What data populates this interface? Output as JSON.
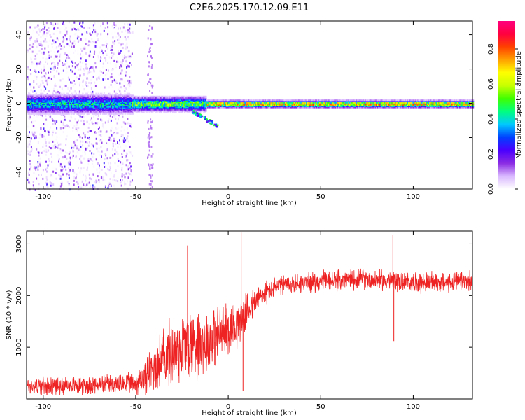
{
  "figure": {
    "title": "C2E6.2025.170.12.09.E11"
  },
  "colors": {
    "snr_line": "#ee2222",
    "axis": "#000000",
    "colormap": [
      "#ffffff",
      "#d9b8ff",
      "#8a2be2",
      "#4b00ff",
      "#0040ff",
      "#00c8ff",
      "#00ff80",
      "#40ff00",
      "#c8ff00",
      "#ffff00",
      "#ffa000",
      "#ff4000",
      "#ff0040",
      "#ff007f"
    ]
  },
  "chart_data": [
    {
      "type": "heatmap",
      "title": "C2E6.2025.170.12.09.E11",
      "xlabel": "Height of straight line (km)",
      "ylabel": "Frequency (Hz)",
      "xlim": [
        -109,
        132
      ],
      "ylim": [
        -50,
        48
      ],
      "xticks": [
        -100,
        -50,
        0,
        50,
        100
      ],
      "xtick_labels": [
        "-100",
        "-50",
        "0",
        "50",
        "100"
      ],
      "yticks": [
        -40,
        -20,
        0,
        20,
        40
      ],
      "ytick_labels": [
        "-40",
        "-20",
        "0",
        "20",
        "40"
      ],
      "colorbar": {
        "label": "Normalized spectral amplitude",
        "range": [
          0,
          0.96
        ],
        "ticks": [
          0.0,
          0.2,
          0.4,
          0.6,
          0.8
        ],
        "tick_labels": [
          "0.0",
          "0.2",
          "0.4",
          "0.6",
          "0.8"
        ]
      },
      "bands": [
        {
          "x": [
            -109,
            -52
          ],
          "center_freq": 0,
          "halfwidth_hz": 4,
          "amplitude": 0.45,
          "scatter_amplitude": 0.3
        },
        {
          "x": [
            -52,
            -12
          ],
          "center_freq": 0,
          "halfwidth_hz": 3,
          "amplitude": 0.6
        },
        {
          "x": [
            -12,
            132
          ],
          "center_freq": 0,
          "halfwidth_hz": 1.5,
          "amplitude": 0.85
        }
      ],
      "tail": {
        "x": [
          -20,
          -6
        ],
        "freq": [
          -4,
          -13
        ],
        "amplitude": 0.35
      }
    },
    {
      "type": "line",
      "title": "",
      "xlabel": "Height of straight line (km)",
      "ylabel": "SNR (10 * v/v)",
      "xlim": [
        -109,
        132
      ],
      "ylim": [
        0,
        3250
      ],
      "xticks": [
        -100,
        -50,
        0,
        50,
        100
      ],
      "xtick_labels": [
        "-100",
        "-50",
        "0",
        "50",
        "100"
      ],
      "yticks": [
        1000,
        2000,
        3000
      ],
      "ytick_labels": [
        "1000",
        "2000",
        "3000"
      ],
      "series": [
        {
          "x": [
            -109,
            -90,
            -70,
            -55,
            -50,
            -45,
            -40,
            -35,
            -30,
            -25,
            -20,
            -15,
            -10,
            -5,
            0,
            5,
            10,
            15,
            20,
            25,
            30,
            40,
            50,
            60,
            70,
            80,
            90,
            100,
            110,
            120,
            132
          ],
          "values": [
            250,
            260,
            270,
            290,
            300,
            420,
            620,
            780,
            900,
            1000,
            1050,
            1100,
            1150,
            1250,
            1350,
            1500,
            1700,
            1900,
            2050,
            2150,
            2200,
            2250,
            2280,
            2300,
            2320,
            2300,
            2280,
            2250,
            2250,
            2260,
            2280
          ],
          "noise": [
            200,
            200,
            220,
            230,
            250,
            400,
            600,
            700,
            800,
            900,
            900,
            800,
            700,
            650,
            600,
            550,
            400,
            350,
            280,
            250,
            230,
            230,
            230,
            230,
            230,
            230,
            230,
            230,
            230,
            230,
            230
          ]
        }
      ],
      "spikes": [
        {
          "x": -22,
          "value": 2970
        },
        {
          "x": 7,
          "value": 3220
        },
        {
          "x": 8,
          "value": 150
        },
        {
          "x": 89,
          "value": 3180
        },
        {
          "x": 89.5,
          "value": 1120
        }
      ]
    }
  ]
}
